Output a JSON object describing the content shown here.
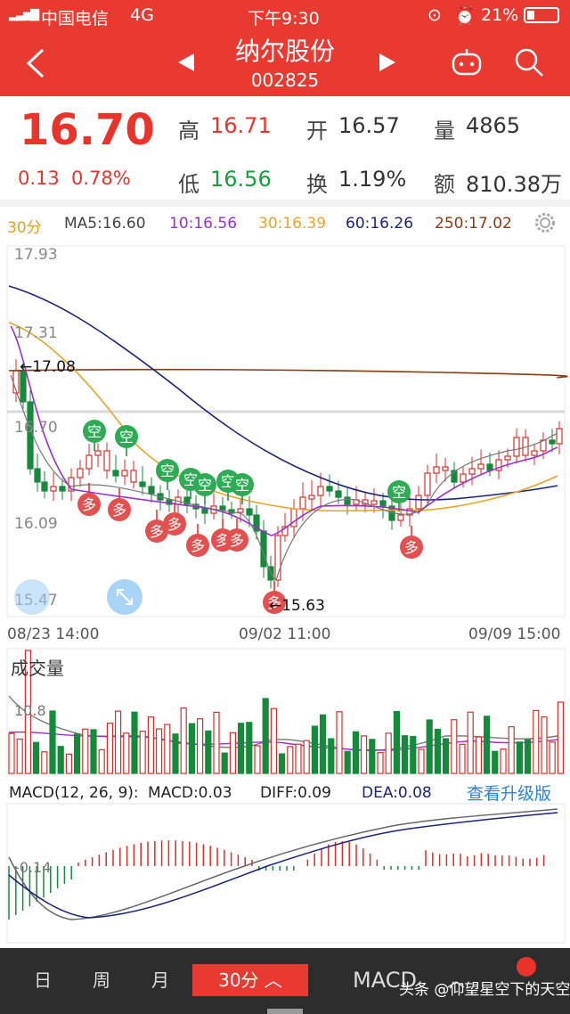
{
  "status": {
    "carrier": "中国电信",
    "network": "4G",
    "time": "下午9:30",
    "battery": "21%"
  },
  "header": {
    "name": "纳尔股份",
    "code": "002825"
  },
  "quote": {
    "price": "16.70",
    "change": "0.13",
    "change_pct": "0.78%",
    "high_label": "高",
    "high": "16.71",
    "open_label": "开",
    "open": "16.57",
    "vol_label": "量",
    "vol": "4865",
    "low_label": "低",
    "low": "16.56",
    "turn_label": "换",
    "turn": "1.19%",
    "amt_label": "额",
    "amt": "810.38万"
  },
  "ma": {
    "period": "30分",
    "ma5": "MA5:16.60",
    "ma10": "10:16.56",
    "ma30": "30:16.39",
    "ma60": "60:16.26",
    "ma250": "250:17.02"
  },
  "axis": {
    "y1": "17.93",
    "y2": "17.31",
    "y3": "16.70",
    "y4": "16.09",
    "y5": "15.47",
    "high_mark": "←17.08",
    "low_mark": "←15.63",
    "d1": "08/23 14:00",
    "d2": "09/02 11:00",
    "d3": "09/09 15:00"
  },
  "markers": {
    "kong": "空",
    "duo": "多"
  },
  "volume": {
    "title": "成交量",
    "ytick": "10.8"
  },
  "macd": {
    "title": "MACD(12, 26, 9):",
    "macd": "MACD:0.03",
    "diff": "DIFF:0.09",
    "dea": "DEA:0.08",
    "upgrade": "查看升级版",
    "ytick": "-0.14"
  },
  "tabs": {
    "day": "日",
    "week": "周",
    "month": "月",
    "min30": "30分",
    "macd": "MACD"
  },
  "watermark": "头条 @仰望星空下的天空",
  "chart_data": [
    {
      "type": "candlestick",
      "ylim": [
        15.47,
        17.93
      ],
      "yticks": [
        17.93,
        17.31,
        16.7,
        16.09,
        15.47
      ],
      "x": [
        "08/23 14:00",
        "09/02 11:00",
        "09/09 15:00"
      ],
      "annotations": [
        {
          "text": "←17.08",
          "y": 17.08
        },
        {
          "text": "←15.63",
          "y": 15.63
        }
      ],
      "series": [
        {
          "name": "MA5",
          "value": 16.6
        },
        {
          "name": "MA10",
          "value": 16.56
        },
        {
          "name": "MA30",
          "value": 16.39
        },
        {
          "name": "MA60",
          "value": 16.26
        },
        {
          "name": "MA250",
          "value": 17.02
        }
      ]
    },
    {
      "type": "bar",
      "title": "成交量",
      "yticks": [
        10.8
      ]
    },
    {
      "type": "bar",
      "title": "MACD(12, 26, 9)",
      "yticks": [
        -0.14
      ],
      "series": [
        {
          "name": "MACD",
          "value": 0.03
        },
        {
          "name": "DIFF",
          "value": 0.09
        },
        {
          "name": "DEA",
          "value": 0.08
        }
      ]
    }
  ]
}
